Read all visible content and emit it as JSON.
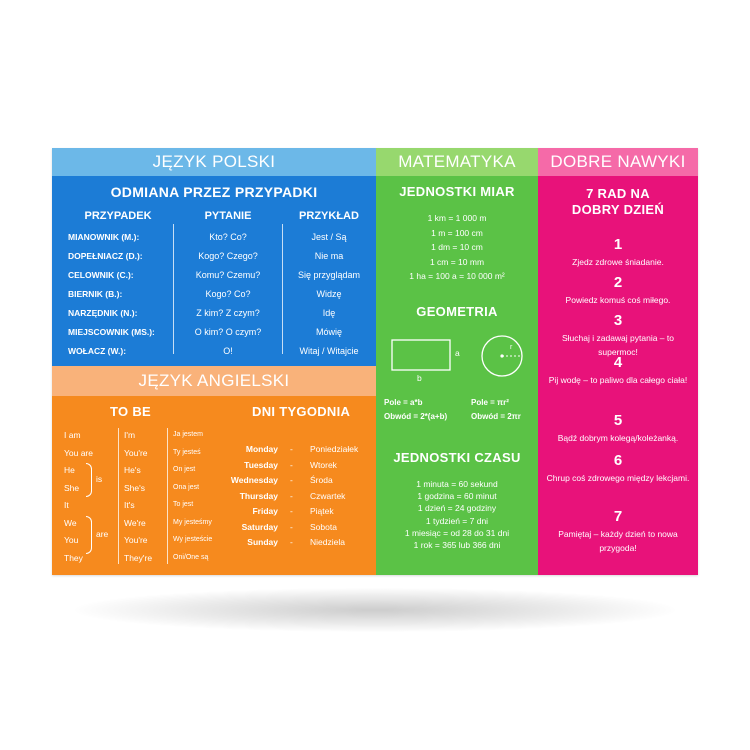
{
  "polish": {
    "header": "JĘZYK POLSKI",
    "subtitle": "ODMIANA PRZEZ PRZYPADKI",
    "columns": [
      "PRZYPADEK",
      "PYTANIE",
      "PRZYKŁAD"
    ],
    "rows": [
      [
        "MIANOWNIK (M.):",
        "Kto? Co?",
        "Jest / Są"
      ],
      [
        "DOPEŁNIACZ (D.):",
        "Kogo? Czego?",
        "Nie ma"
      ],
      [
        "CELOWNIK (C.):",
        "Komu? Czemu?",
        "Się przyglądam"
      ],
      [
        "BIERNIK (B.):",
        "Kogo? Co?",
        "Widzę"
      ],
      [
        "NARZĘDNIK (N.):",
        "Z kim? Z czym?",
        "Idę"
      ],
      [
        "MIEJSCOWNIK (MS.):",
        "O kim? O czym?",
        "Mówię"
      ],
      [
        "WOŁACZ (W.):",
        "O!",
        "Witaj / Witajcie"
      ]
    ]
  },
  "english": {
    "header": "JĘZYK ANGIELSKI",
    "to_be_title": "TO BE",
    "days_title": "DNI TYGODNIA",
    "pronouns": [
      "I am",
      "You are",
      "He",
      "She",
      "It",
      "We",
      "You",
      "They"
    ],
    "is_label": "is",
    "are_label": "are",
    "contractions": [
      "I'm",
      "You're",
      "He's",
      "She's",
      "It's",
      "We're",
      "You're",
      "They're"
    ],
    "translations": [
      "Ja jestem",
      "Ty jesteś",
      "On jest",
      "Ona jest",
      "To jest",
      "My jesteśmy",
      "Wy jesteście",
      "Oni/One są"
    ],
    "days": [
      [
        "Monday",
        "Poniedziałek"
      ],
      [
        "Tuesday",
        "Wtorek"
      ],
      [
        "Wednesday",
        "Środa"
      ],
      [
        "Thursday",
        "Czwartek"
      ],
      [
        "Friday",
        "Piątek"
      ],
      [
        "Saturday",
        "Sobota"
      ],
      [
        "Sunday",
        "Niedziela"
      ]
    ],
    "dash": "-"
  },
  "math": {
    "header": "MATEMATYKA",
    "units_title": "JEDNOSTKI MIAR",
    "units": [
      "1 km = 1 000 m",
      "1 m = 100 cm",
      "1 dm = 10 cm",
      "1 cm = 10 mm",
      "1 ha = 100 a = 10 000 m²"
    ],
    "geometry_title": "GEOMETRIA",
    "rect_a": "a",
    "rect_b": "b",
    "circle_r": "r",
    "rect_area": "Pole = a*b",
    "rect_perimeter": "Obwód = 2*(a+b)",
    "circle_area": "Pole = πr²",
    "circle_perimeter": "Obwód = 2πr",
    "time_title": "JEDNOSTKI CZASU",
    "time": [
      "1 minuta = 60 sekund",
      "1 godzina = 60 minut",
      "1 dzień = 24 godziny",
      "1 tydzień = 7 dni",
      "1 miesiąc = od 28 do 31 dni",
      "1 rok = 365 lub 366 dni"
    ]
  },
  "habits": {
    "header": "DOBRE NAWYKI",
    "title_line1": "7 RAD NA",
    "title_line2": "DOBRY DZIEŃ",
    "items": [
      {
        "num": "1",
        "text": "Zjedz zdrowe śniadanie."
      },
      {
        "num": "2",
        "text": "Powiedz komuś coś miłego."
      },
      {
        "num": "3",
        "text": "Słuchaj i zadawaj pytania – to supermoc!"
      },
      {
        "num": "4",
        "text": "Pij wodę – to paliwo dla całego ciała!"
      },
      {
        "num": "5",
        "text": "Bądź dobrym kolegą/koleżanką."
      },
      {
        "num": "6",
        "text": "Chrup coś zdrowego między lekcjami."
      },
      {
        "num": "7",
        "text": "Pamiętaj – każdy dzień to nowa przygoda!"
      }
    ]
  },
  "colors": {
    "polish": "#1c7cd6",
    "polish_header": "#6cb8e8",
    "english": "#f68a1e",
    "english_header": "#f9b27a",
    "math": "#5bc246",
    "math_header": "#97d86e",
    "habits": "#e8127a",
    "habits_header": "#f56aa8"
  }
}
